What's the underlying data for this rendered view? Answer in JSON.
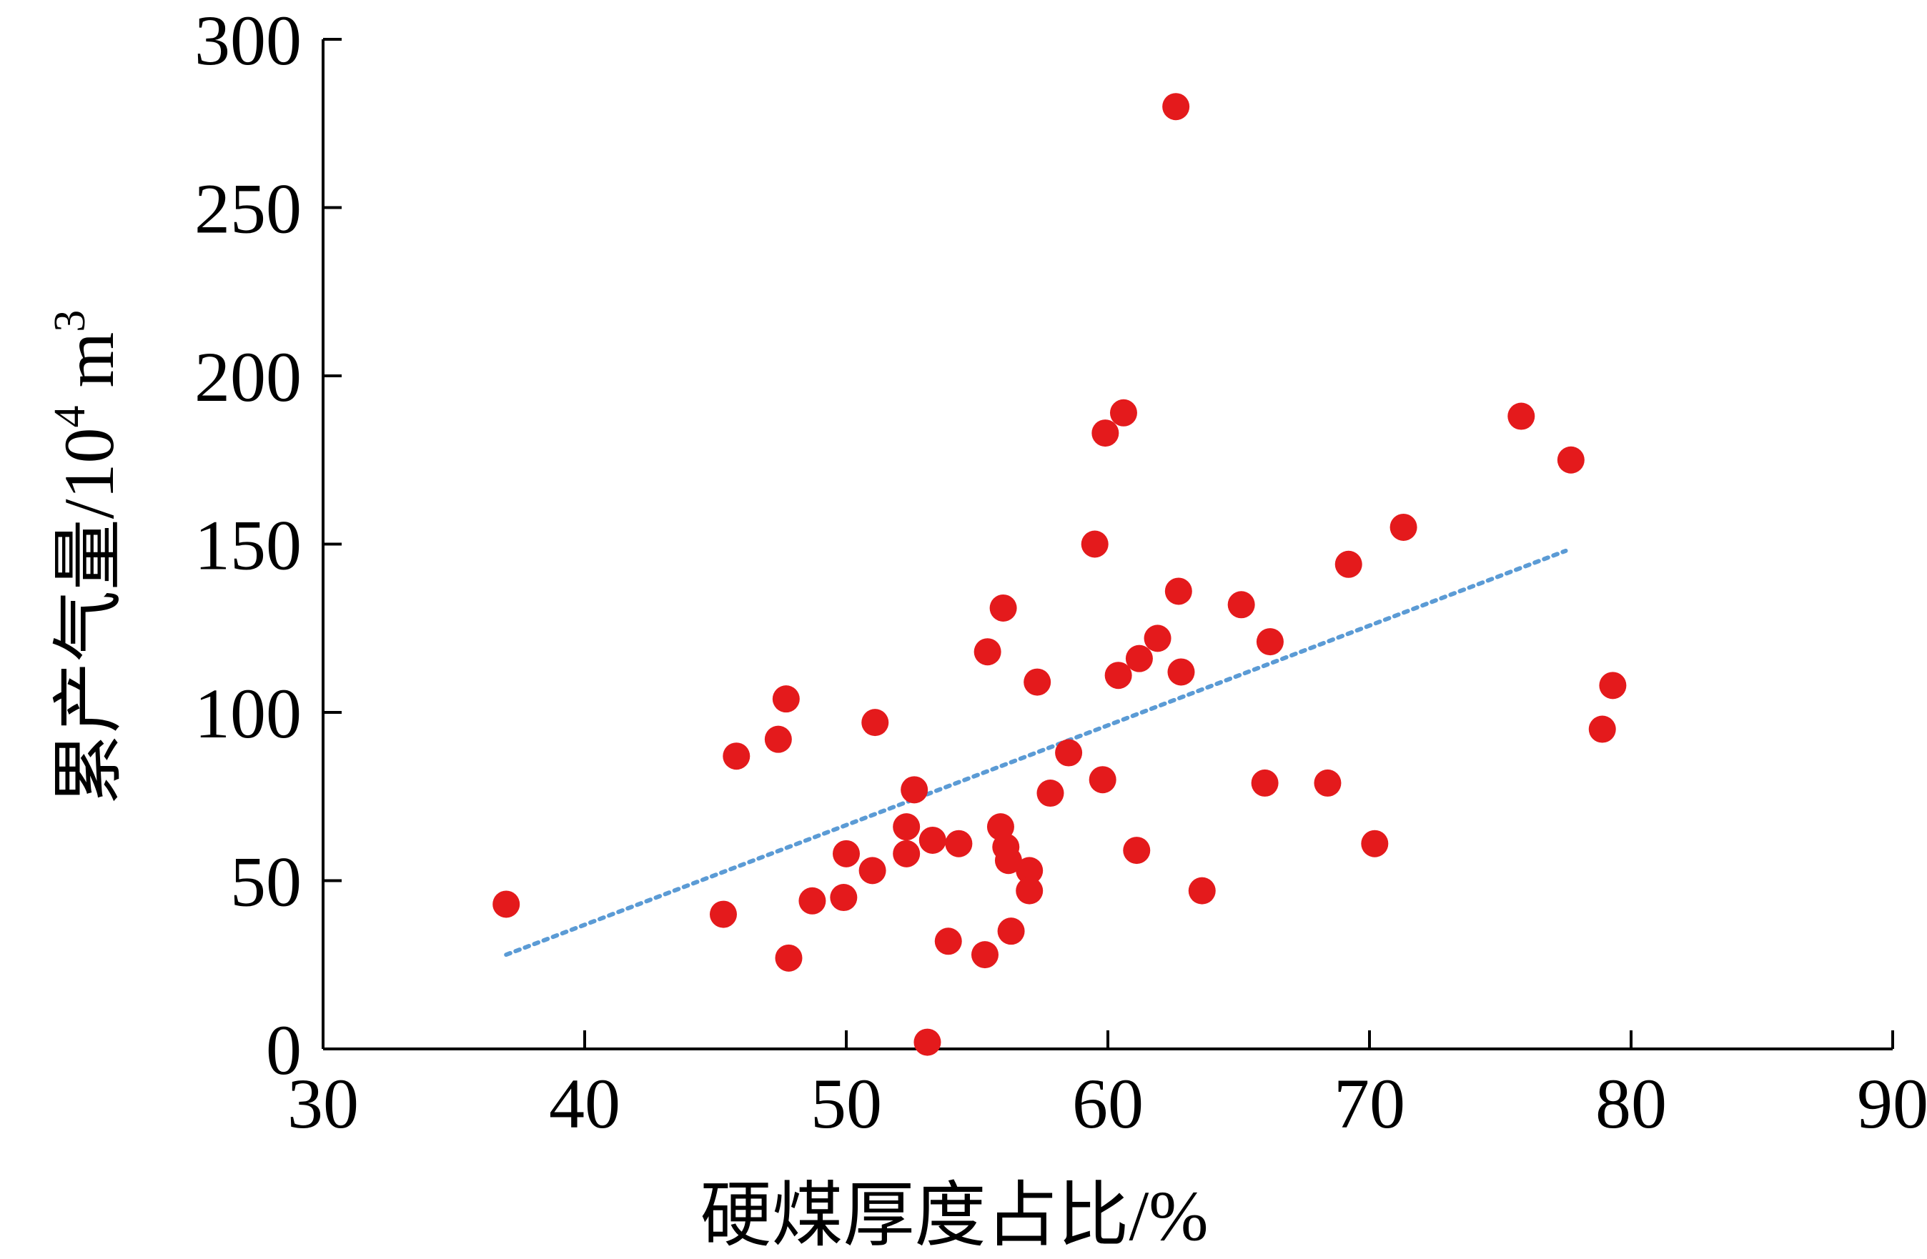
{
  "chart_data": {
    "type": "scatter",
    "title": "",
    "xlabel": "硬煤厚度占比/%",
    "ylabel_main": "累产气量/10",
    "ylabel_exp1": "4",
    "ylabel_unit": " m",
    "ylabel_exp2": "3",
    "xlim": [
      30,
      90
    ],
    "ylim": [
      0,
      300
    ],
    "xticks": [
      30,
      40,
      50,
      60,
      70,
      80,
      90
    ],
    "yticks": [
      0,
      50,
      100,
      150,
      200,
      250,
      300
    ],
    "grid": false,
    "legend": "none",
    "colors": {
      "points": "#e41a1c",
      "trendline": "#5b9bd5",
      "axis": "#000000"
    },
    "series": [
      {
        "points": [
          [
            37.0,
            43
          ],
          [
            45.3,
            40
          ],
          [
            45.8,
            87
          ],
          [
            47.4,
            92
          ],
          [
            47.7,
            104
          ],
          [
            47.8,
            27
          ],
          [
            48.7,
            44
          ],
          [
            49.9,
            45
          ],
          [
            50.0,
            58
          ],
          [
            51.0,
            53
          ],
          [
            51.1,
            97
          ],
          [
            52.3,
            66
          ],
          [
            52.3,
            58
          ],
          [
            52.6,
            77
          ],
          [
            53.1,
            2
          ],
          [
            53.3,
            62
          ],
          [
            53.9,
            32
          ],
          [
            54.3,
            61
          ],
          [
            55.4,
            118
          ],
          [
            55.3,
            28
          ],
          [
            55.9,
            66
          ],
          [
            56.0,
            131
          ],
          [
            56.1,
            60
          ],
          [
            56.2,
            56
          ],
          [
            56.3,
            35
          ],
          [
            57.0,
            53
          ],
          [
            57.0,
            47
          ],
          [
            57.3,
            109
          ],
          [
            57.8,
            76
          ],
          [
            58.5,
            88
          ],
          [
            59.5,
            150
          ],
          [
            59.8,
            80
          ],
          [
            59.9,
            183
          ],
          [
            60.4,
            111
          ],
          [
            60.6,
            189
          ],
          [
            61.1,
            59
          ],
          [
            61.2,
            116
          ],
          [
            61.9,
            122
          ],
          [
            62.6,
            280
          ],
          [
            62.7,
            136
          ],
          [
            62.8,
            112
          ],
          [
            63.6,
            47
          ],
          [
            65.1,
            132
          ],
          [
            66.0,
            79
          ],
          [
            66.2,
            121
          ],
          [
            68.4,
            79
          ],
          [
            69.2,
            144
          ],
          [
            70.2,
            61
          ],
          [
            71.3,
            155
          ],
          [
            75.8,
            188
          ],
          [
            77.7,
            175
          ],
          [
            78.9,
            95
          ],
          [
            79.3,
            108
          ]
        ]
      }
    ],
    "trendline": {
      "type": "linear",
      "x_start": 37.0,
      "y_start": 28,
      "x_end": 77.5,
      "y_end": 148
    }
  }
}
